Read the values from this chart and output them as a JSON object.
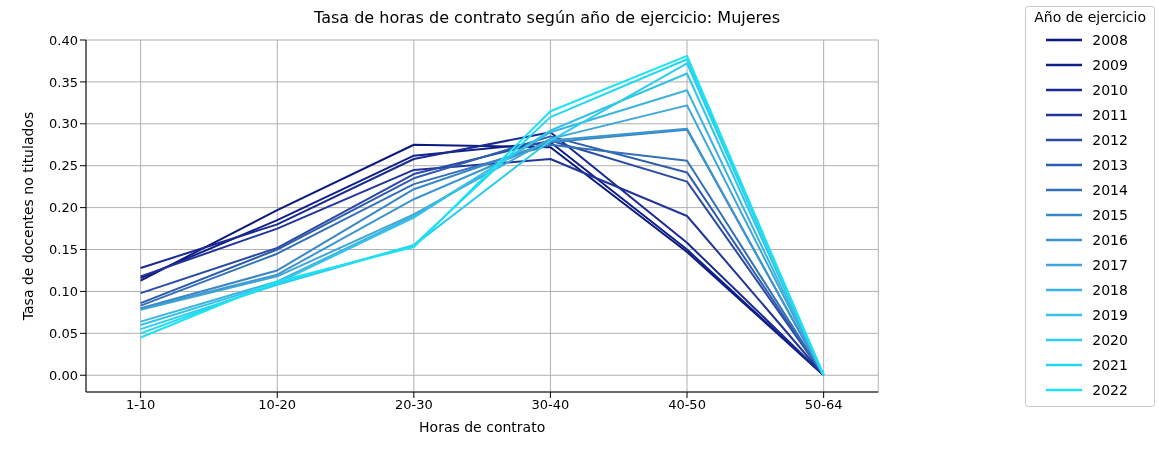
{
  "chart_data": {
    "type": "line",
    "title": "Tasa de horas de contrato según año de ejercicio: Mujeres",
    "xlabel": "Horas de contrato",
    "ylabel": "Tasa de docentes no titulados",
    "legend_title": "Año de ejercicio",
    "legend": "right",
    "grid": true,
    "marker": "none",
    "line_style": "solid",
    "categories": [
      "1-10",
      "10-20",
      "20-30",
      "30-40",
      "40-50",
      "50-64"
    ],
    "ylim": [
      -0.02,
      0.4
    ],
    "yticks": [
      {
        "value": 0,
        "label": "0.00"
      },
      {
        "value": 0.05,
        "label": "0.05"
      },
      {
        "value": 0.1,
        "label": "0.10"
      },
      {
        "value": 0.15,
        "label": "0.15"
      },
      {
        "value": 0.2,
        "label": "0.20"
      },
      {
        "value": 0.25,
        "label": "0.25"
      },
      {
        "value": 0.3,
        "label": "0.30"
      },
      {
        "value": 0.35,
        "label": "0.35"
      },
      {
        "value": 0.4,
        "label": "0.40"
      }
    ],
    "series": [
      {
        "name": "2008",
        "color": "#0c1a7e",
        "values": [
          0.113,
          0.197,
          0.275,
          0.272,
          0.147,
          0
        ]
      },
      {
        "name": "2009",
        "color": "#10208a",
        "values": [
          0.116,
          0.185,
          0.262,
          0.278,
          0.15,
          0
        ]
      },
      {
        "name": "2010",
        "color": "#1a2a93",
        "values": [
          0.128,
          0.18,
          0.258,
          0.29,
          0.158,
          0
        ]
      },
      {
        "name": "2011",
        "color": "#22359a",
        "values": [
          0.118,
          0.175,
          0.245,
          0.258,
          0.19,
          0
        ]
      },
      {
        "name": "2012",
        "color": "#2a4aa6",
        "values": [
          0.098,
          0.152,
          0.24,
          0.28,
          0.231,
          0
        ]
      },
      {
        "name": "2013",
        "color": "#2f5cae",
        "values": [
          0.086,
          0.15,
          0.235,
          0.285,
          0.242,
          0
        ]
      },
      {
        "name": "2014",
        "color": "#3470b8",
        "values": [
          0.083,
          0.145,
          0.228,
          0.275,
          0.256,
          0
        ]
      },
      {
        "name": "2015",
        "color": "#3a86c6",
        "values": [
          0.08,
          0.125,
          0.222,
          0.278,
          0.293,
          0
        ]
      },
      {
        "name": "2016",
        "color": "#3d95cf",
        "values": [
          0.079,
          0.12,
          0.21,
          0.28,
          0.294,
          0
        ]
      },
      {
        "name": "2017",
        "color": "#3ea6d6",
        "values": [
          0.078,
          0.118,
          0.192,
          0.282,
          0.322,
          0
        ]
      },
      {
        "name": "2018",
        "color": "#3cb4df",
        "values": [
          0.064,
          0.112,
          0.19,
          0.29,
          0.34,
          0
        ]
      },
      {
        "name": "2019",
        "color": "#35c2e6",
        "values": [
          0.06,
          0.11,
          0.188,
          0.292,
          0.36,
          0
        ]
      },
      {
        "name": "2020",
        "color": "#2ccdec",
        "values": [
          0.055,
          0.108,
          0.155,
          0.28,
          0.372,
          0
        ]
      },
      {
        "name": "2021",
        "color": "#22d8f0",
        "values": [
          0.05,
          0.11,
          0.155,
          0.308,
          0.377,
          0
        ]
      },
      {
        "name": "2022",
        "color": "#1ee2f2",
        "values": [
          0.045,
          0.112,
          0.153,
          0.315,
          0.381,
          0
        ]
      }
    ]
  }
}
